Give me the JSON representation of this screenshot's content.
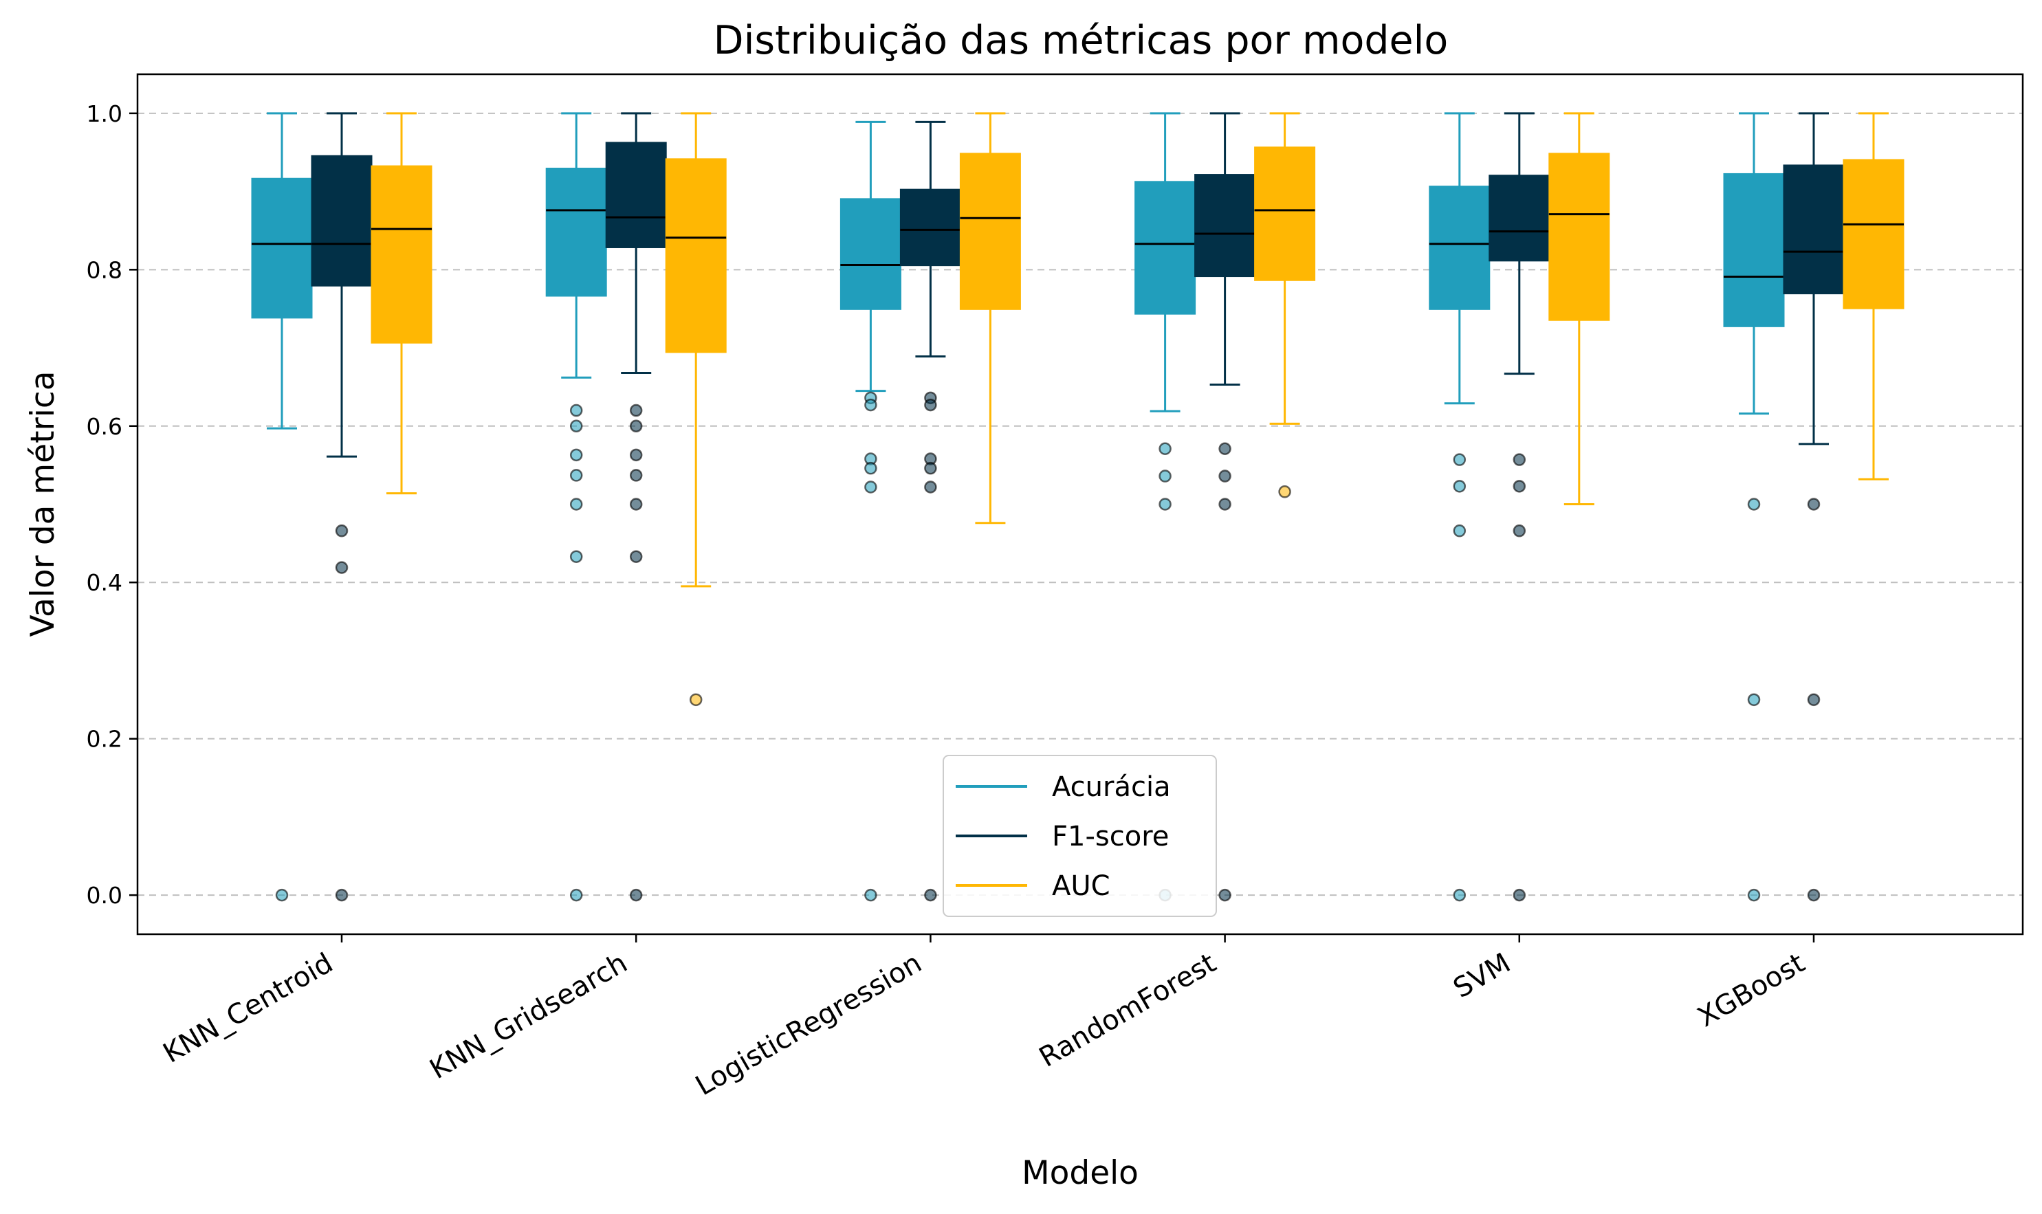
{
  "chart_data": {
    "type": "box",
    "title": "Distribuição das métricas por modelo",
    "xlabel": "Modelo",
    "ylabel": "Valor da métrica",
    "ylim": [
      -0.05,
      1.05
    ],
    "yticks": [
      "0.0",
      "0.2",
      "0.4",
      "0.6",
      "0.8",
      "1.0"
    ],
    "ytick_values": [
      0.0,
      0.2,
      0.4,
      0.6,
      0.8,
      1.0
    ],
    "grid": "horizontal-dashed",
    "legend_position": "bottom-center",
    "categories": [
      "KNN_Centroid",
      "KNN_Gridsearch",
      "LogisticRegression",
      "RandomForest",
      "SVM",
      "XGBoost"
    ],
    "series": [
      {
        "name": "Acurácia",
        "color": "#219ebc",
        "boxes": [
          {
            "whislo": 0.597,
            "q1": 0.738,
            "med": 0.833,
            "q3": 0.917,
            "whishi": 1.0,
            "fliers": [
              0.0
            ]
          },
          {
            "whislo": 0.662,
            "q1": 0.766,
            "med": 0.876,
            "q3": 0.93,
            "whishi": 1.0,
            "fliers": [
              0.62,
              0.6,
              0.563,
              0.537,
              0.5,
              0.433,
              0.0
            ]
          },
          {
            "whislo": 0.645,
            "q1": 0.749,
            "med": 0.806,
            "q3": 0.891,
            "whishi": 0.989,
            "fliers": [
              0.636,
              0.627,
              0.558,
              0.546,
              0.522,
              0.0
            ]
          },
          {
            "whislo": 0.619,
            "q1": 0.743,
            "med": 0.833,
            "q3": 0.913,
            "whishi": 1.0,
            "fliers": [
              0.571,
              0.536,
              0.5,
              0.0
            ]
          },
          {
            "whislo": 0.629,
            "q1": 0.749,
            "med": 0.833,
            "q3": 0.907,
            "whishi": 1.0,
            "fliers": [
              0.557,
              0.523,
              0.466,
              0.0
            ]
          },
          {
            "whislo": 0.616,
            "q1": 0.727,
            "med": 0.791,
            "q3": 0.923,
            "whishi": 1.0,
            "fliers": [
              0.5,
              0.25,
              0.0
            ]
          }
        ]
      },
      {
        "name": "F1-score",
        "color": "#023047",
        "boxes": [
          {
            "whislo": 0.561,
            "q1": 0.779,
            "med": 0.833,
            "q3": 0.946,
            "whishi": 1.0,
            "fliers": [
              0.466,
              0.419,
              0.0
            ]
          },
          {
            "whislo": 0.668,
            "q1": 0.828,
            "med": 0.867,
            "q3": 0.963,
            "whishi": 1.0,
            "fliers": [
              0.62,
              0.6,
              0.563,
              0.537,
              0.5,
              0.433,
              0.0
            ]
          },
          {
            "whislo": 0.689,
            "q1": 0.805,
            "med": 0.851,
            "q3": 0.903,
            "whishi": 0.989,
            "fliers": [
              0.636,
              0.627,
              0.558,
              0.546,
              0.522,
              0.0
            ]
          },
          {
            "whislo": 0.653,
            "q1": 0.791,
            "med": 0.846,
            "q3": 0.922,
            "whishi": 1.0,
            "fliers": [
              0.571,
              0.536,
              0.5,
              0.0
            ]
          },
          {
            "whislo": 0.667,
            "q1": 0.811,
            "med": 0.849,
            "q3": 0.921,
            "whishi": 1.0,
            "fliers": [
              0.557,
              0.523,
              0.466,
              0.0
            ]
          },
          {
            "whislo": 0.577,
            "q1": 0.769,
            "med": 0.823,
            "q3": 0.934,
            "whishi": 1.0,
            "fliers": [
              0.5,
              0.25,
              0.0
            ]
          }
        ]
      },
      {
        "name": "AUC",
        "color": "#ffb703",
        "boxes": [
          {
            "whislo": 0.514,
            "q1": 0.706,
            "med": 0.852,
            "q3": 0.933,
            "whishi": 1.0,
            "fliers": []
          },
          {
            "whislo": 0.395,
            "q1": 0.694,
            "med": 0.841,
            "q3": 0.942,
            "whishi": 1.0,
            "fliers": [
              0.25
            ]
          },
          {
            "whislo": 0.476,
            "q1": 0.749,
            "med": 0.866,
            "q3": 0.949,
            "whishi": 1.0,
            "fliers": []
          },
          {
            "whislo": 0.603,
            "q1": 0.786,
            "med": 0.876,
            "q3": 0.957,
            "whishi": 1.0,
            "fliers": [
              0.516
            ]
          },
          {
            "whislo": 0.5,
            "q1": 0.735,
            "med": 0.871,
            "q3": 0.949,
            "whishi": 1.0,
            "fliers": []
          },
          {
            "whislo": 0.532,
            "q1": 0.75,
            "med": 0.858,
            "q3": 0.941,
            "whishi": 1.0,
            "fliers": []
          }
        ]
      }
    ]
  }
}
